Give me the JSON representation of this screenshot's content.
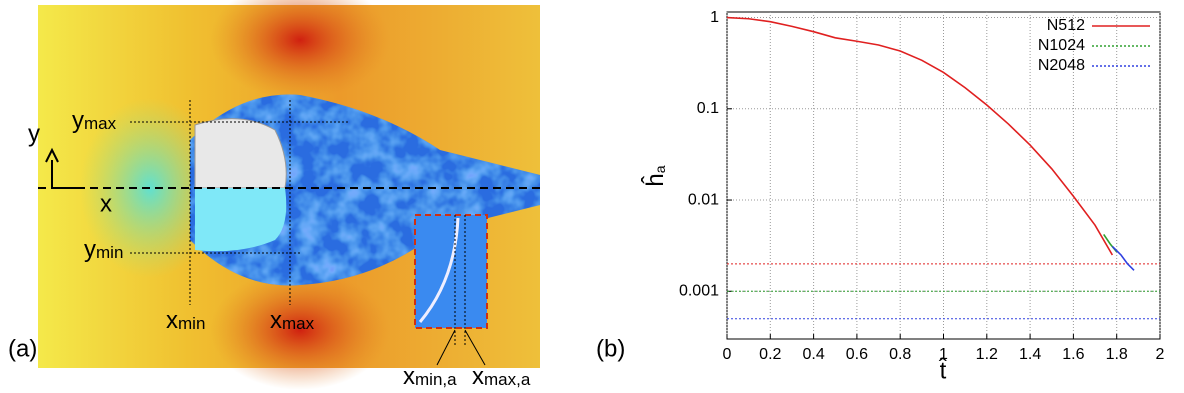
{
  "figure_a": {
    "panel_label": "(a)",
    "axis_y": "y",
    "axis_x": "x",
    "labels": [
      {
        "base": "y",
        "sub": "max"
      },
      {
        "base": "y",
        "sub": "min"
      },
      {
        "base": "x",
        "sub": "min"
      },
      {
        "base": "x",
        "sub": "max"
      },
      {
        "base": "x",
        "sub": "min,a"
      },
      {
        "base": "x",
        "sub": "max,a"
      }
    ]
  },
  "chart_data": {
    "type": "line",
    "panel_label": "(b)",
    "x_label": "t̂",
    "y_label": {
      "base": "ĥ",
      "sub": "a"
    },
    "log_y": true,
    "grid": true,
    "legend": "upper right",
    "xlim": [
      0,
      2
    ],
    "xticks": [
      0,
      0.2,
      0.4,
      0.6,
      0.8,
      1,
      1.2,
      1.4,
      1.6,
      1.8,
      2
    ],
    "ylim": [
      0.0003,
      1.15
    ],
    "yticks": [
      0.001,
      0.01,
      0.1,
      1
    ],
    "series": [
      {
        "name": "N512",
        "color": "#e02020",
        "x": [
          0,
          0.1,
          0.2,
          0.3,
          0.4,
          0.5,
          0.6,
          0.7,
          0.8,
          0.9,
          1.0,
          1.1,
          1.2,
          1.3,
          1.4,
          1.5,
          1.6,
          1.7,
          1.78
        ],
        "values": [
          1,
          0.97,
          0.9,
          0.8,
          0.7,
          0.6,
          0.55,
          0.5,
          0.43,
          0.34,
          0.25,
          0.17,
          0.11,
          0.068,
          0.04,
          0.022,
          0.011,
          0.0053,
          0.0025
        ]
      },
      {
        "name": "N1024",
        "color": "#30a030",
        "x": [
          1.74,
          1.77,
          1.8
        ],
        "values": [
          0.0042,
          0.0033,
          0.0027
        ]
      },
      {
        "name": "N2048",
        "color": "#3040e0",
        "x": [
          1.78,
          1.82,
          1.85,
          1.88
        ],
        "values": [
          0.0031,
          0.0025,
          0.002,
          0.0017
        ]
      }
    ],
    "reference_lines": [
      {
        "value": 0.002,
        "color": "#e02020"
      },
      {
        "value": 0.001,
        "color": "#30a030"
      },
      {
        "value": 0.0005,
        "color": "#3040e0"
      }
    ]
  }
}
